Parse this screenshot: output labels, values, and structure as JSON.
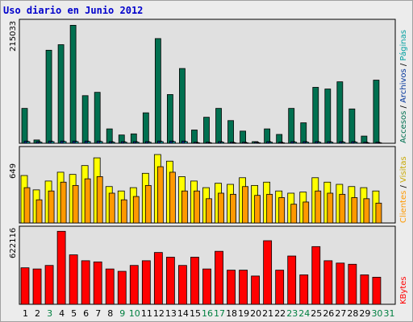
{
  "title": "Uso diario en Junio 2012",
  "days": [
    "1",
    "2",
    "3",
    "4",
    "5",
    "6",
    "7",
    "8",
    "9",
    "10",
    "11",
    "12",
    "13",
    "14",
    "15",
    "16",
    "17",
    "18",
    "19",
    "20",
    "21",
    "22",
    "23",
    "24",
    "25",
    "26",
    "27",
    "28",
    "29",
    "30",
    "31"
  ],
  "weekend_days": [
    3,
    9,
    10,
    16,
    17,
    23,
    24,
    30,
    31
  ],
  "colors": {
    "day_label": "#000000",
    "weekend_label": "#008040",
    "grid_bg": "#e0e0e0",
    "pages": "#00a0a0",
    "visits": "#ffff00",
    "clients": "#ff9900",
    "accesses": "#007050",
    "archives": "#003399",
    "kbytes": "#ff0000"
  },
  "chart_data": [
    {
      "type": "bar",
      "panel": "top",
      "max_label": "215033",
      "ylim": [
        0,
        215033
      ],
      "series": [
        {
          "name": "Páginas",
          "values": [
            3000,
            2000,
            3000,
            3000,
            3000,
            3000,
            3000,
            2000,
            2000,
            2000,
            2000,
            3000,
            3000,
            3000,
            1000,
            1000,
            2000,
            1000,
            1000,
            1000,
            2000,
            1000,
            2000,
            2000,
            2000,
            2000,
            2000,
            2000,
            1000,
            1000,
            0
          ]
        },
        {
          "name": "Archivos",
          "values": [
            4000,
            3000,
            4000,
            4000,
            4000,
            4000,
            4000,
            3000,
            3000,
            3000,
            3000,
            4000,
            4000,
            4000,
            2000,
            2000,
            3000,
            2000,
            2000,
            2000,
            3000,
            2000,
            3000,
            3000,
            3000,
            3000,
            3000,
            3000,
            2000,
            2000,
            0
          ]
        },
        {
          "name": "Accesos",
          "values": [
            63000,
            6000,
            168000,
            178000,
            213000,
            86000,
            92000,
            26000,
            15000,
            17000,
            55000,
            189000,
            88000,
            135000,
            24000,
            47000,
            63000,
            41000,
            22000,
            3000,
            26000,
            16000,
            63000,
            37000,
            101000,
            98000,
            111000,
            62000,
            13000,
            114000,
            0
          ]
        }
      ]
    },
    {
      "type": "bar",
      "panel": "middle",
      "max_label": "649",
      "ylim": [
        0,
        649
      ],
      "series": [
        {
          "name": "Visitas",
          "values": [
            430,
            300,
            380,
            460,
            440,
            520,
            590,
            330,
            290,
            320,
            450,
            620,
            560,
            420,
            380,
            320,
            360,
            350,
            410,
            340,
            370,
            290,
            270,
            280,
            410,
            370,
            350,
            330,
            320,
            290,
            0
          ]
        },
        {
          "name": "Clientes",
          "values": [
            320,
            210,
            290,
            370,
            340,
            400,
            420,
            270,
            210,
            240,
            340,
            510,
            460,
            290,
            290,
            220,
            270,
            260,
            330,
            250,
            260,
            230,
            170,
            190,
            290,
            270,
            260,
            230,
            220,
            180,
            0
          ]
        }
      ]
    },
    {
      "type": "bar",
      "panel": "bottom",
      "max_label": "622116",
      "ylim": [
        0,
        622116
      ],
      "series": [
        {
          "name": "KBytes",
          "values": [
            310000,
            300000,
            330000,
            620000,
            420000,
            370000,
            360000,
            300000,
            280000,
            330000,
            370000,
            440000,
            400000,
            330000,
            400000,
            300000,
            450000,
            290000,
            290000,
            240000,
            540000,
            290000,
            410000,
            250000,
            490000,
            370000,
            350000,
            340000,
            250000,
            230000,
            0
          ]
        }
      ]
    }
  ],
  "legend": {
    "pages": "Páginas",
    "archives": "Archivos",
    "accesses": "Accesos",
    "visits": "Visitas",
    "clients": "Clientes",
    "kbytes": "KBytes"
  }
}
